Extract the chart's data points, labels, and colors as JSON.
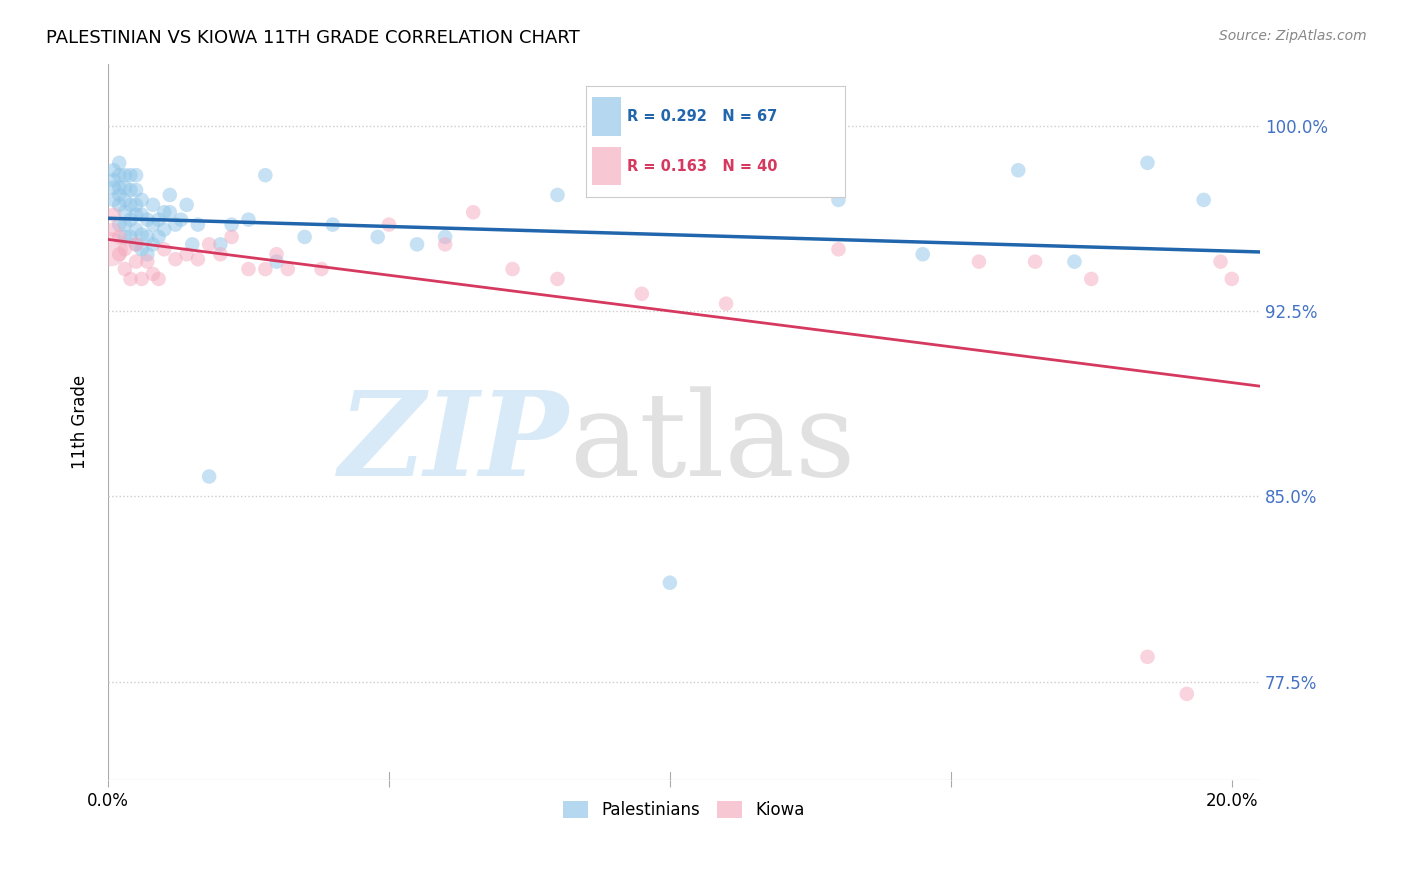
{
  "title": "PALESTINIAN VS KIOWA 11TH GRADE CORRELATION CHART",
  "source": "Source: ZipAtlas.com",
  "ylabel": "11th Grade",
  "ytick_vals": [
    0.775,
    0.85,
    0.925,
    1.0
  ],
  "ytick_labels": [
    "77.5%",
    "85.0%",
    "92.5%",
    "100.0%"
  ],
  "xtick_vals": [
    0.0,
    0.05,
    0.1,
    0.15,
    0.2
  ],
  "xtick_labels": [
    "0.0%",
    "",
    "",
    "",
    "20.0%"
  ],
  "xlim": [
    0.0,
    0.205
  ],
  "ylim": [
    0.735,
    1.025
  ],
  "blue_color": "#8ec4e8",
  "pink_color": "#f4a9be",
  "blue_line_color": "#2166ac",
  "pink_line_color": "#d6395f",
  "bg_color": "#ffffff",
  "ytick_color": "#4472c4",
  "grid_color": "#cccccc",
  "blue_r": 0.292,
  "blue_n": 67,
  "pink_r": 0.163,
  "pink_n": 40,
  "blue_x": [
    0.001,
    0.001,
    0.001,
    0.001,
    0.002,
    0.002,
    0.002,
    0.002,
    0.002,
    0.002,
    0.003,
    0.003,
    0.003,
    0.003,
    0.003,
    0.003,
    0.004,
    0.004,
    0.004,
    0.004,
    0.004,
    0.005,
    0.005,
    0.005,
    0.005,
    0.005,
    0.005,
    0.006,
    0.006,
    0.006,
    0.006,
    0.007,
    0.007,
    0.007,
    0.008,
    0.008,
    0.008,
    0.009,
    0.009,
    0.01,
    0.01,
    0.011,
    0.011,
    0.012,
    0.013,
    0.014,
    0.015,
    0.016,
    0.018,
    0.02,
    0.022,
    0.025,
    0.028,
    0.03,
    0.035,
    0.04,
    0.048,
    0.055,
    0.06,
    0.08,
    0.1,
    0.13,
    0.145,
    0.162,
    0.172,
    0.185,
    0.195
  ],
  "blue_y": [
    0.97,
    0.975,
    0.978,
    0.982,
    0.96,
    0.968,
    0.972,
    0.975,
    0.98,
    0.985,
    0.955,
    0.96,
    0.965,
    0.97,
    0.975,
    0.98,
    0.955,
    0.962,
    0.968,
    0.974,
    0.98,
    0.952,
    0.958,
    0.964,
    0.968,
    0.974,
    0.98,
    0.95,
    0.956,
    0.964,
    0.97,
    0.948,
    0.955,
    0.962,
    0.952,
    0.96,
    0.968,
    0.955,
    0.962,
    0.958,
    0.965,
    0.965,
    0.972,
    0.96,
    0.962,
    0.968,
    0.952,
    0.96,
    0.858,
    0.952,
    0.96,
    0.962,
    0.98,
    0.945,
    0.955,
    0.96,
    0.955,
    0.952,
    0.955,
    0.972,
    0.815,
    0.97,
    0.948,
    0.982,
    0.945,
    0.985,
    0.97
  ],
  "pink_x": [
    0.001,
    0.001,
    0.002,
    0.002,
    0.003,
    0.003,
    0.004,
    0.005,
    0.005,
    0.006,
    0.007,
    0.008,
    0.009,
    0.01,
    0.012,
    0.014,
    0.016,
    0.018,
    0.02,
    0.022,
    0.025,
    0.028,
    0.03,
    0.032,
    0.038,
    0.05,
    0.06,
    0.065,
    0.072,
    0.08,
    0.095,
    0.11,
    0.13,
    0.155,
    0.165,
    0.175,
    0.185,
    0.192,
    0.198,
    0.2
  ],
  "pink_y": [
    0.958,
    0.964,
    0.948,
    0.955,
    0.942,
    0.95,
    0.938,
    0.945,
    0.952,
    0.938,
    0.945,
    0.94,
    0.938,
    0.95,
    0.946,
    0.948,
    0.946,
    0.952,
    0.948,
    0.955,
    0.942,
    0.942,
    0.948,
    0.942,
    0.942,
    0.96,
    0.952,
    0.965,
    0.942,
    0.938,
    0.932,
    0.928,
    0.95,
    0.945,
    0.945,
    0.938,
    0.785,
    0.77,
    0.945,
    0.938
  ],
  "large_pink_x": [
    0.0005
  ],
  "large_pink_y": [
    0.95
  ],
  "large_pink_size": 600
}
